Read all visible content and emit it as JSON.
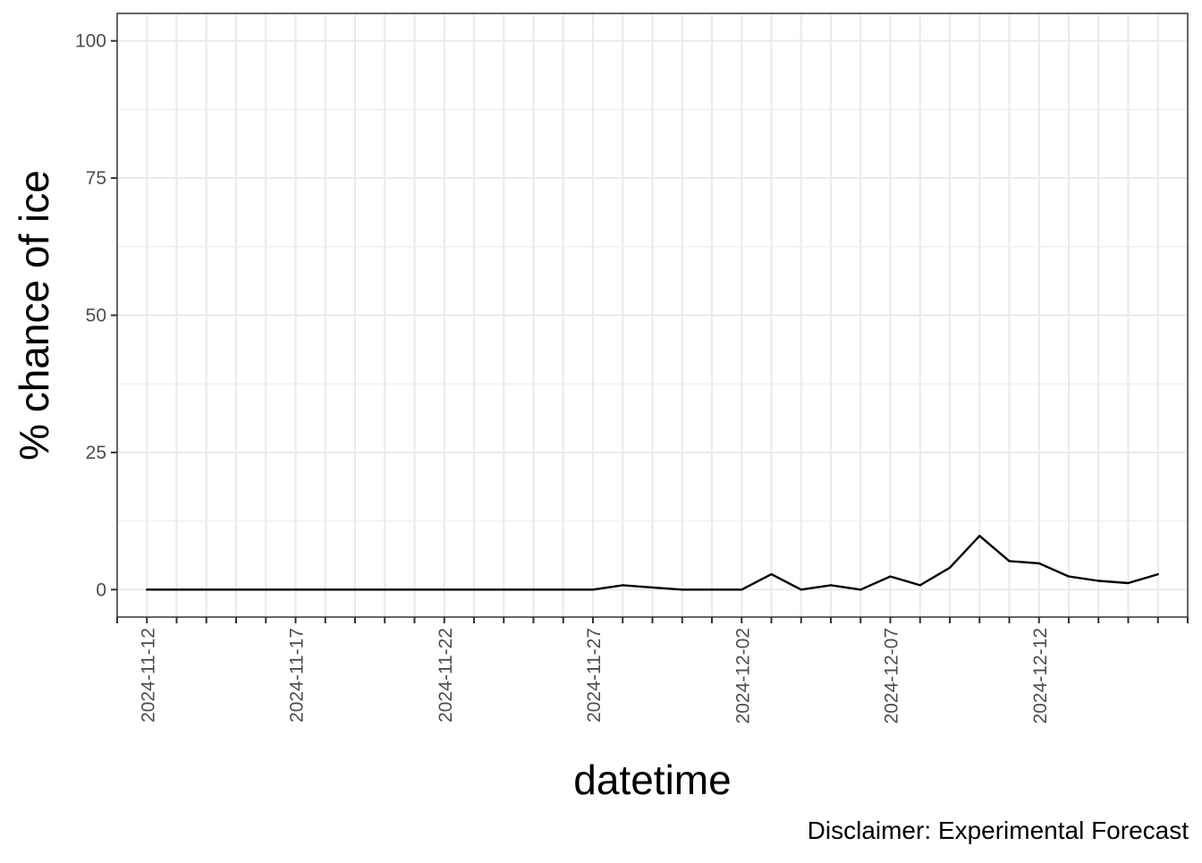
{
  "chart_data": {
    "type": "line",
    "title": "",
    "xlabel": "datetime",
    "ylabel": "% chance of ice",
    "caption": "Disclaimer: Experimental Forecast",
    "x_scale": "date",
    "xlim": [
      "2024-11-11",
      "2024-12-17"
    ],
    "ylim": [
      -5,
      105
    ],
    "y_ticks": [
      0,
      25,
      50,
      75,
      100
    ],
    "y_tick_labels": [
      "0",
      "25",
      "50",
      "75",
      "100"
    ],
    "x_tick_dates": [
      "2024-11-12",
      "2024-11-17",
      "2024-11-22",
      "2024-11-27",
      "2024-12-02",
      "2024-12-07",
      "2024-12-12"
    ],
    "x_tick_labels": [
      "2024-11-12",
      "2024-11-17",
      "2024-11-22",
      "2024-11-27",
      "2024-12-02",
      "2024-12-07",
      "2024-12-12"
    ],
    "grid": true,
    "panel_border": true,
    "colors": {
      "line": "#000000",
      "grid": "#ebebeb",
      "panel_border": "#333333",
      "tick_text": "#4d4d4d",
      "background": "#ffffff"
    },
    "series": [
      {
        "x": [
          "2024-11-12",
          "2024-11-13",
          "2024-11-14",
          "2024-11-15",
          "2024-11-16",
          "2024-11-17",
          "2024-11-18",
          "2024-11-19",
          "2024-11-20",
          "2024-11-21",
          "2024-11-22",
          "2024-11-23",
          "2024-11-24",
          "2024-11-25",
          "2024-11-26",
          "2024-11-27",
          "2024-11-28",
          "2024-11-29",
          "2024-11-30",
          "2024-12-01",
          "2024-12-02",
          "2024-12-03",
          "2024-12-04",
          "2024-12-05",
          "2024-12-06",
          "2024-12-07",
          "2024-12-08",
          "2024-12-09",
          "2024-12-10",
          "2024-12-11",
          "2024-12-12",
          "2024-12-13",
          "2024-12-14",
          "2024-12-15",
          "2024-12-16"
        ],
        "y": [
          0,
          0,
          0,
          0,
          0,
          0,
          0,
          0,
          0,
          0,
          0,
          0,
          0,
          0,
          0,
          0,
          0.8,
          0.4,
          0,
          0,
          0,
          2.8,
          0,
          0.8,
          0,
          2.4,
          0.8,
          4.0,
          9.8,
          5.2,
          4.8,
          2.4,
          1.6,
          1.2,
          2.8
        ]
      }
    ]
  }
}
